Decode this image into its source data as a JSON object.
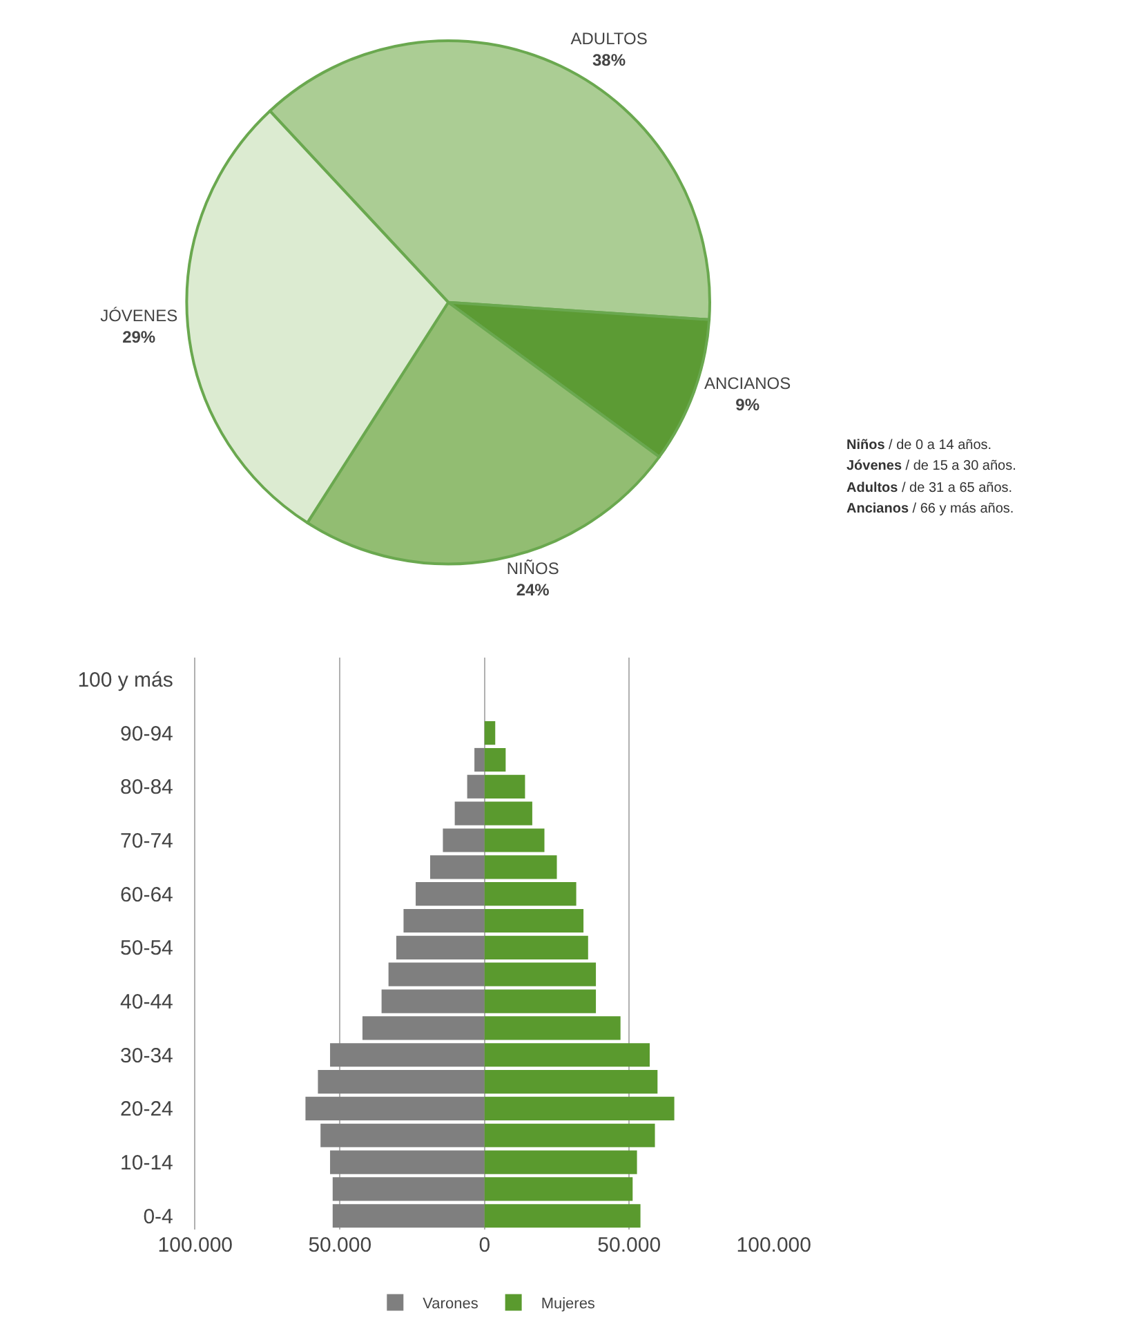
{
  "chart_data": [
    {
      "type": "pie",
      "categories": [
        "ADULTOS",
        "ANCIANOS",
        "NIÑOS",
        "JÓVENES"
      ],
      "values": [
        38,
        9,
        24,
        29
      ],
      "value_labels": [
        "38%",
        "9%",
        "24%",
        "29%"
      ],
      "colors": [
        "#abcd94",
        "#5c9b34",
        "#92bd72",
        "#dcebd1"
      ],
      "legend": false,
      "annotations": [
        "Niños / de 0 a 14 años.",
        "Jóvenes / de 15 a 30 años.",
        "Adultos / de 31 a 65 años.",
        "Ancianos / 66 y más años."
      ]
    },
    {
      "type": "bar",
      "orientation": "horizontal",
      "stacked": true,
      "categories": [
        "100 y más",
        null,
        "90-94",
        null,
        "80-84",
        null,
        "70-74",
        null,
        "60-64",
        null,
        "50-54",
        null,
        "40-44",
        null,
        "30-34",
        null,
        "20-24",
        null,
        "10-14",
        null,
        "0-4"
      ],
      "series": [
        {
          "name": "Varones",
          "color": "#7f7f7f",
          "values": [
            null,
            null,
            null,
            -3500,
            -6000,
            -10300,
            -14400,
            -18800,
            -23800,
            -28000,
            -30500,
            -33200,
            -35600,
            -42200,
            -53400,
            -57600,
            -61900,
            -56700,
            -53400,
            -52500,
            -52500
          ]
        },
        {
          "name": "Mujeres",
          "color": "#5a9a2e",
          "values": [
            null,
            null,
            3700,
            7300,
            14000,
            16500,
            20700,
            25000,
            31700,
            34200,
            35800,
            38500,
            38500,
            47000,
            57100,
            59800,
            65600,
            58900,
            52700,
            51200,
            53900
          ]
        }
      ],
      "xlim": [
        -100000,
        100000
      ],
      "xticks": [
        {
          "value": -100000,
          "label": "100.000"
        },
        {
          "value": -50000,
          "label": "50.000"
        },
        0,
        {
          "value": 50000,
          "label": "50.000"
        },
        {
          "value": 100000,
          "label": "100.000"
        }
      ],
      "grid": "x",
      "legend": "bottom"
    }
  ]
}
